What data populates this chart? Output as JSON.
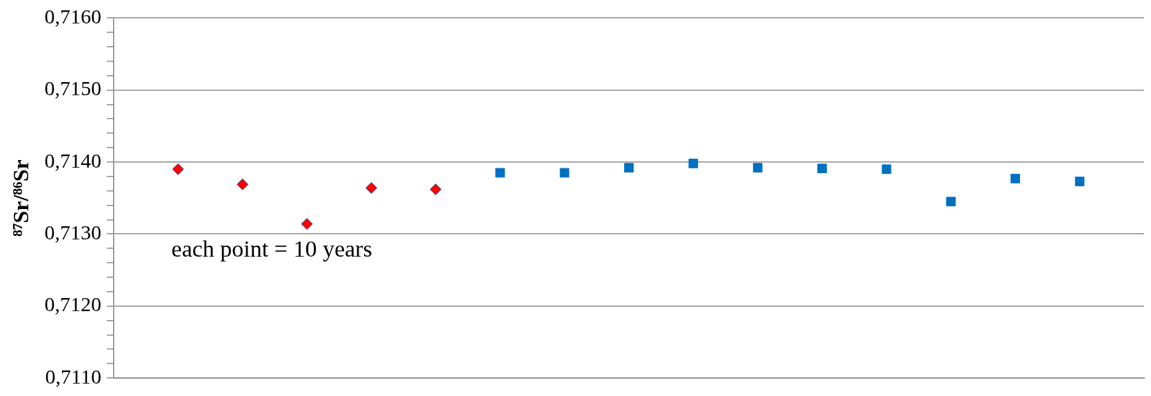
{
  "chart_data": {
    "type": "scatter",
    "ylabel": "⁸⁷Sr/⁸⁶Sr",
    "annotations": [
      "each point = 10 years"
    ],
    "categories": [
      null,
      null,
      null,
      null,
      null,
      null,
      null,
      null,
      null,
      null,
      null,
      null,
      null,
      null,
      null
    ],
    "ylim": [
      0.711,
      0.716
    ],
    "yticks": [
      {
        "value": 0.711,
        "label": "0,7110"
      },
      {
        "value": 0.7112,
        "label": null
      },
      {
        "value": 0.7114,
        "label": null
      },
      {
        "value": 0.7116,
        "label": null
      },
      {
        "value": 0.7118,
        "label": null
      },
      {
        "value": 0.712,
        "label": "0,7120"
      },
      {
        "value": 0.7122,
        "label": null
      },
      {
        "value": 0.7124,
        "label": null
      },
      {
        "value": 0.7126,
        "label": null
      },
      {
        "value": 0.7128,
        "label": null
      },
      {
        "value": 0.713,
        "label": "0,7130"
      },
      {
        "value": 0.7132,
        "label": null
      },
      {
        "value": 0.7134,
        "label": null
      },
      {
        "value": 0.7136,
        "label": null
      },
      {
        "value": 0.7138,
        "label": null
      },
      {
        "value": 0.714,
        "label": "0,7140"
      },
      {
        "value": 0.7142,
        "label": null
      },
      {
        "value": 0.7144,
        "label": null
      },
      {
        "value": 0.7146,
        "label": null
      },
      {
        "value": 0.7148,
        "label": null
      },
      {
        "value": 0.715,
        "label": "0,7150"
      },
      {
        "value": 0.7152,
        "label": null
      },
      {
        "value": 0.7154,
        "label": null
      },
      {
        "value": 0.7156,
        "label": null
      },
      {
        "value": 0.7158,
        "label": null
      },
      {
        "value": 0.716,
        "label": "0,7160"
      }
    ],
    "grid": "y",
    "tick_labels": "y",
    "legend": false,
    "series": [
      {
        "color": "#ff0000",
        "marker": "diamond",
        "values": [
          0.7139,
          0.71369,
          0.71314,
          0.71364,
          0.71362,
          null,
          null,
          null,
          null,
          null,
          null,
          null,
          null,
          null,
          null
        ]
      },
      {
        "color": "#0070c0",
        "marker": "square",
        "values": [
          null,
          null,
          null,
          null,
          null,
          0.71385,
          0.71385,
          0.71392,
          0.71398,
          0.71392,
          0.71391,
          0.7139,
          0.71345,
          0.71377,
          0.71373
        ]
      }
    ]
  }
}
